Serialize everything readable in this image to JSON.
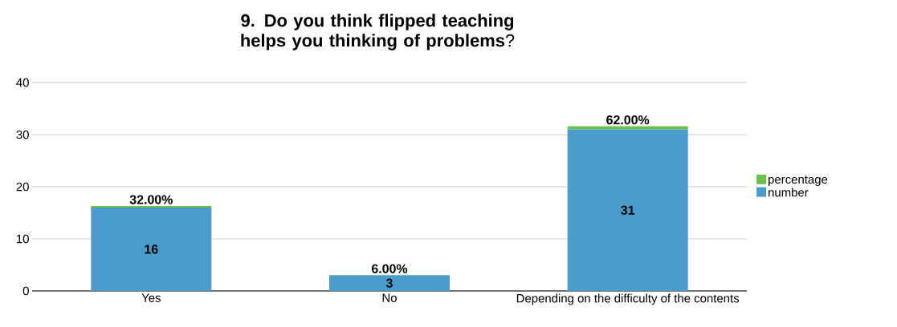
{
  "chart_data": {
    "type": "bar",
    "title": "**9. Do you think flipped teaching helps you thinking of problems**?",
    "categories": [
      "Yes",
      "No",
      "Depending on the difficulty of the contents"
    ],
    "stacked": true,
    "series": [
      {
        "name": "number",
        "color": "#4a9ccc",
        "values": [
          16,
          3,
          31
        ],
        "value_labels": [
          "16",
          "3",
          "31"
        ]
      },
      {
        "name": "percentage",
        "color": "#6cc04a",
        "values": [
          0.32,
          0.06,
          0.62
        ],
        "value_labels": [
          "32.00%",
          "6.00%",
          "62.00%"
        ]
      }
    ],
    "ylim": [
      0,
      40
    ],
    "yticks": [
      0,
      10,
      20,
      30,
      40
    ],
    "grid": "y",
    "legend": "right"
  }
}
